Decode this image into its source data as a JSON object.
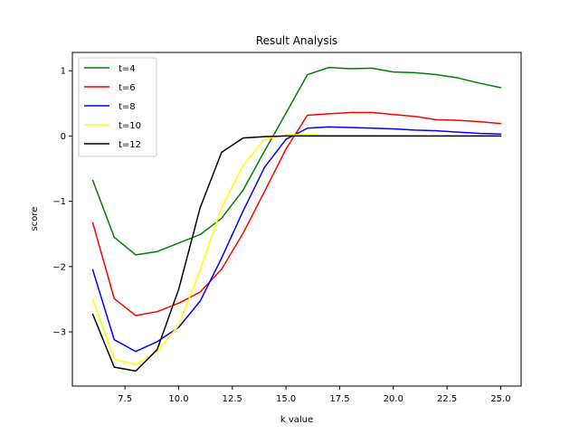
{
  "chart_data": {
    "type": "line",
    "title": "Result Analysis",
    "xlabel": "k value",
    "ylabel": "score",
    "xlim": [
      5.05,
      25.95
    ],
    "ylim": [
      -3.83,
      1.28
    ],
    "xticks": [
      7.5,
      10.0,
      12.5,
      15.0,
      17.5,
      20.0,
      22.5,
      25.0
    ],
    "xtick_labels": [
      "7.5",
      "10.0",
      "12.5",
      "15.0",
      "17.5",
      "20.0",
      "22.5",
      "25.0"
    ],
    "yticks": [
      -3,
      -2,
      -1,
      0,
      1
    ],
    "ytick_labels": [
      "−3",
      "−2",
      "−1",
      "0",
      "1"
    ],
    "grid": false,
    "legend_position": "top-left",
    "x": [
      6,
      7,
      8,
      9,
      10,
      11,
      12,
      13,
      14,
      15,
      16,
      17,
      18,
      19,
      20,
      21,
      22,
      23,
      24,
      25
    ],
    "series": [
      {
        "name": "t=4",
        "color": "#008000",
        "values": [
          -0.68,
          -1.55,
          -1.82,
          -1.77,
          -1.64,
          -1.51,
          -1.26,
          -0.83,
          -0.23,
          0.35,
          0.94,
          1.05,
          1.03,
          1.04,
          0.98,
          0.97,
          0.94,
          0.89,
          0.81,
          0.74
        ]
      },
      {
        "name": "t=6",
        "color": "#ff0000",
        "values": [
          -1.33,
          -2.49,
          -2.75,
          -2.69,
          -2.56,
          -2.39,
          -2.04,
          -1.49,
          -0.85,
          -0.2,
          0.32,
          0.34,
          0.36,
          0.36,
          0.33,
          0.3,
          0.25,
          0.24,
          0.22,
          0.19
        ]
      },
      {
        "name": "t=8",
        "color": "#0000ff",
        "values": [
          -2.05,
          -3.12,
          -3.3,
          -3.15,
          -2.93,
          -2.53,
          -1.87,
          -1.15,
          -0.48,
          -0.05,
          0.12,
          0.14,
          0.13,
          0.12,
          0.11,
          0.09,
          0.08,
          0.06,
          0.04,
          0.03
        ]
      },
      {
        "name": "t=10",
        "color": "#ffff00",
        "values": [
          -2.5,
          -3.42,
          -3.5,
          -3.3,
          -2.9,
          -2.05,
          -1.1,
          -0.45,
          -0.05,
          0.02,
          0.02,
          0.01,
          0.01,
          0.01,
          0.01,
          0.0,
          0.0,
          0.0,
          0.0,
          0.0
        ]
      },
      {
        "name": "t=12",
        "color": "#000000",
        "values": [
          -2.73,
          -3.54,
          -3.6,
          -3.27,
          -2.35,
          -1.1,
          -0.25,
          -0.03,
          -0.01,
          0.0,
          0.0,
          0.0,
          0.0,
          0.0,
          0.0,
          0.0,
          0.0,
          0.0,
          0.0,
          0.0
        ]
      }
    ]
  }
}
